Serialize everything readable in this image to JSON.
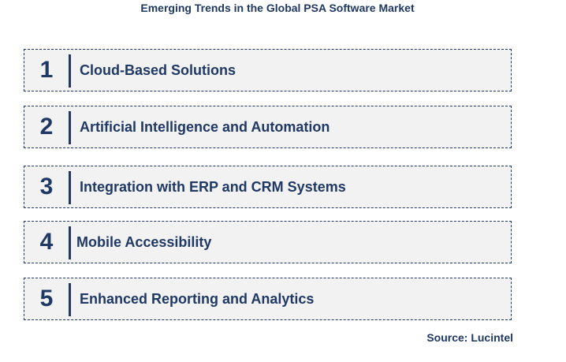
{
  "title": "Emerging Trends in the Global PSA Software Market",
  "items": [
    {
      "number": "1",
      "label": "Cloud-Based Solutions"
    },
    {
      "number": "2",
      "label": "Artificial Intelligence and Automation"
    },
    {
      "number": "3",
      "label": "Integration with ERP and CRM Systems"
    },
    {
      "number": "4",
      "label": "Mobile Accessibility"
    },
    {
      "number": "5",
      "label": "Enhanced Reporting and Analytics"
    }
  ],
  "source": "Source: Lucintel"
}
